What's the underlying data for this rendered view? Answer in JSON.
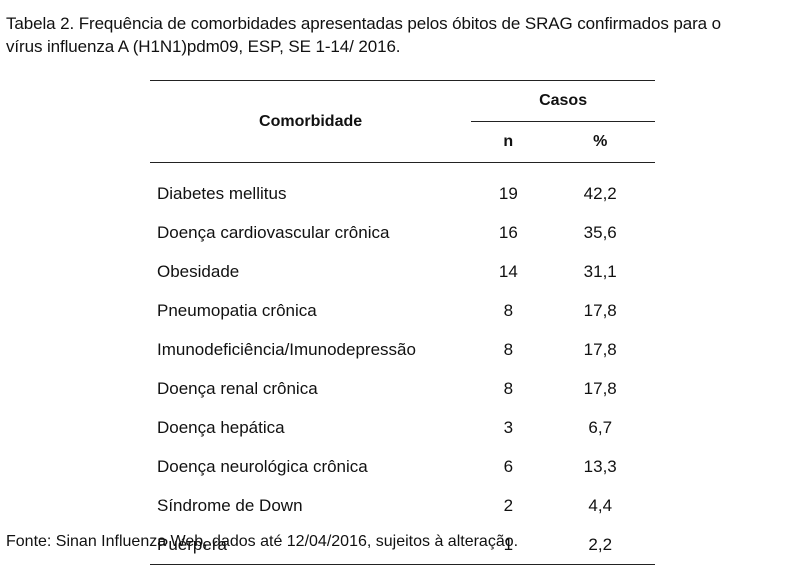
{
  "caption": {
    "line1": "Tabela 2. Frequência de comorbidades apresentadas pelos óbitos de SRAG confirmados para o",
    "line2": "vírus influenza A (H1N1)pdm09, ESP, SE 1-14/ 2016."
  },
  "table": {
    "header_comorbidade": "Comorbidade",
    "header_casos": "Casos",
    "header_n": "n",
    "header_pct": "%",
    "rows": [
      {
        "name": "Diabetes mellitus",
        "n": "19",
        "pct": "42,2"
      },
      {
        "name": "Doença cardiovascular crônica",
        "n": "16",
        "pct": "35,6"
      },
      {
        "name": "Obesidade",
        "n": "14",
        "pct": "31,1"
      },
      {
        "name": "Pneumopatia crônica",
        "n": "8",
        "pct": "17,8"
      },
      {
        "name": "Imunodeficiência/Imunodepressão",
        "n": "8",
        "pct": "17,8"
      },
      {
        "name": "Doença renal crônica",
        "n": "8",
        "pct": "17,8"
      },
      {
        "name": "Doença hepática",
        "n": "3",
        "pct": "6,7"
      },
      {
        "name": "Doença neurológica crônica",
        "n": "6",
        "pct": "13,3"
      },
      {
        "name": "Síndrome de Down",
        "n": "2",
        "pct": "4,4"
      },
      {
        "name": "Puérpera",
        "n": "1",
        "pct": "2,2"
      }
    ]
  },
  "source": "Fonte: Sinan Influenza Web, dados até 12/04/2016, sujeitos à alteração."
}
